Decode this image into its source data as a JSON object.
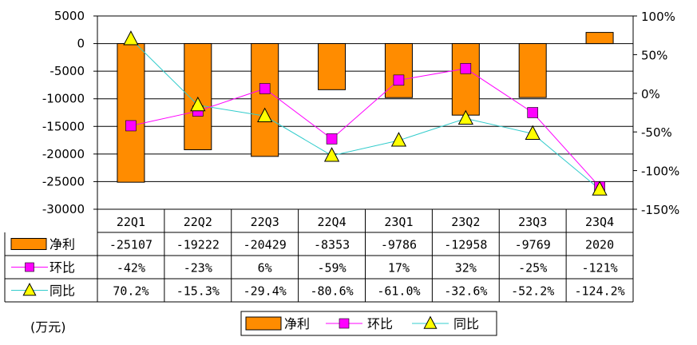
{
  "chart_data": {
    "type": "bar+line",
    "categories": [
      "22Q1",
      "22Q2",
      "22Q3",
      "22Q4",
      "23Q1",
      "23Q2",
      "23Q3",
      "23Q4"
    ],
    "series": [
      {
        "name": "净利",
        "kind": "bar",
        "axis": "left",
        "color": "#ff8c00",
        "values": [
          -25107,
          -19222,
          -20429,
          -8353,
          -9786,
          -12958,
          -9769,
          2020
        ],
        "labels": [
          "-25107",
          "-19222",
          "-20429",
          "-8353",
          "-9786",
          "-12958",
          "-9769",
          "2020"
        ]
      },
      {
        "name": "环比",
        "kind": "line",
        "axis": "right",
        "color": "#ff00ff",
        "marker": "square",
        "values": [
          -42,
          -23,
          6,
          -59,
          17,
          32,
          -25,
          -121
        ],
        "labels": [
          "-42%",
          "-23%",
          "6%",
          "-59%",
          "17%",
          "32%",
          "-25%",
          "-121%"
        ]
      },
      {
        "name": "同比",
        "kind": "line",
        "axis": "right",
        "color": "#33cccc",
        "marker": "triangle",
        "values": [
          70.2,
          -15.3,
          -29.4,
          -80.6,
          -61.0,
          -32.6,
          -52.2,
          -124.2
        ],
        "labels": [
          "70.2%",
          "-15.3%",
          "-29.4%",
          "-80.6%",
          "-61.0%",
          "-32.6%",
          "-52.2%",
          "-124.2%"
        ]
      }
    ],
    "left_axis": {
      "min": -30000,
      "max": 5000,
      "step": 5000,
      "ticks": [
        "5000",
        "0",
        "-5000",
        "-10000",
        "-15000",
        "-20000",
        "-25000",
        "-30000"
      ]
    },
    "right_axis": {
      "min": -150,
      "max": 100,
      "step": 50,
      "ticks": [
        "100%",
        "50%",
        "0%",
        "-50%",
        "-100%",
        "-150%"
      ]
    },
    "unit_label": "(万元)",
    "legend": [
      "净利",
      "环比",
      "同比"
    ],
    "legend_position": "bottom-center",
    "grid": true
  }
}
